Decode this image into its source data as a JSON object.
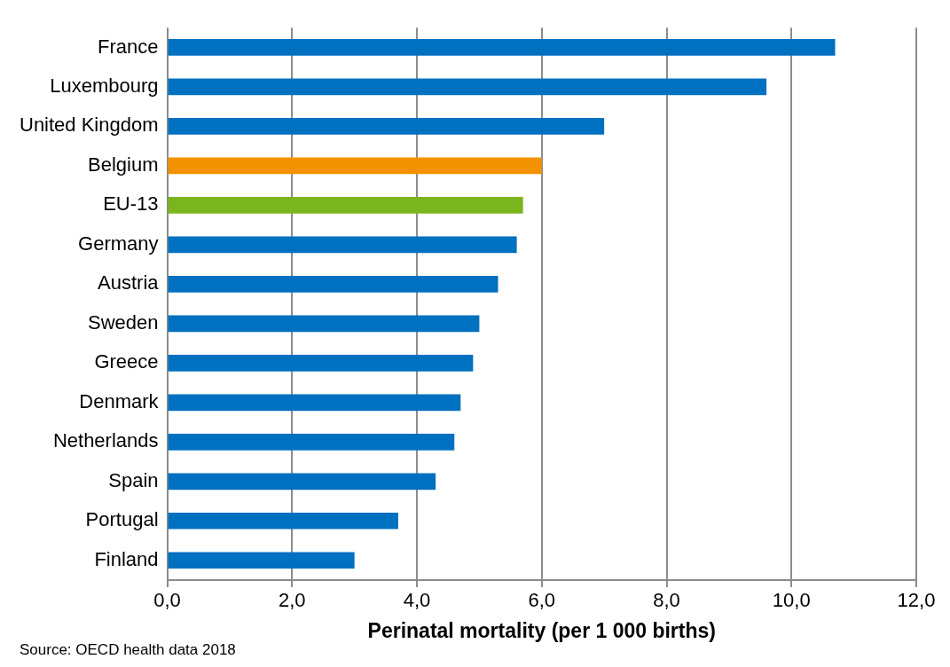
{
  "chart_data": {
    "type": "bar",
    "orientation": "horizontal",
    "xlabel": "Perinatal mortality (per 1 000 births)",
    "categories": [
      "France",
      "Luxembourg",
      "United Kingdom",
      "Belgium",
      "EU-13",
      "Germany",
      "Austria",
      "Sweden",
      "Greece",
      "Denmark",
      "Netherlands",
      "Spain",
      "Portugal",
      "Finland"
    ],
    "values": [
      10.7,
      9.6,
      7.0,
      6.0,
      5.7,
      5.6,
      5.3,
      5.0,
      4.9,
      4.7,
      4.6,
      4.3,
      3.7,
      3.0
    ],
    "colors": [
      "#0070c0",
      "#0070c0",
      "#0070c0",
      "#f39200",
      "#7ab51d",
      "#0070c0",
      "#0070c0",
      "#0070c0",
      "#0070c0",
      "#0070c0",
      "#0070c0",
      "#0070c0",
      "#0070c0",
      "#0070c0"
    ],
    "xlim": [
      0,
      12
    ],
    "xticks": [
      {
        "value": 0,
        "label": "0,0"
      },
      {
        "value": 2,
        "label": "2,0"
      },
      {
        "value": 4,
        "label": "4,0"
      },
      {
        "value": 6,
        "label": "6,0"
      },
      {
        "value": 8,
        "label": "8,0"
      },
      {
        "value": 10,
        "label": "10,0"
      },
      {
        "value": 12,
        "label": "12,0"
      }
    ],
    "grid": "x",
    "legend": false,
    "annotations": [
      "Source: OECD health data 2018"
    ]
  }
}
